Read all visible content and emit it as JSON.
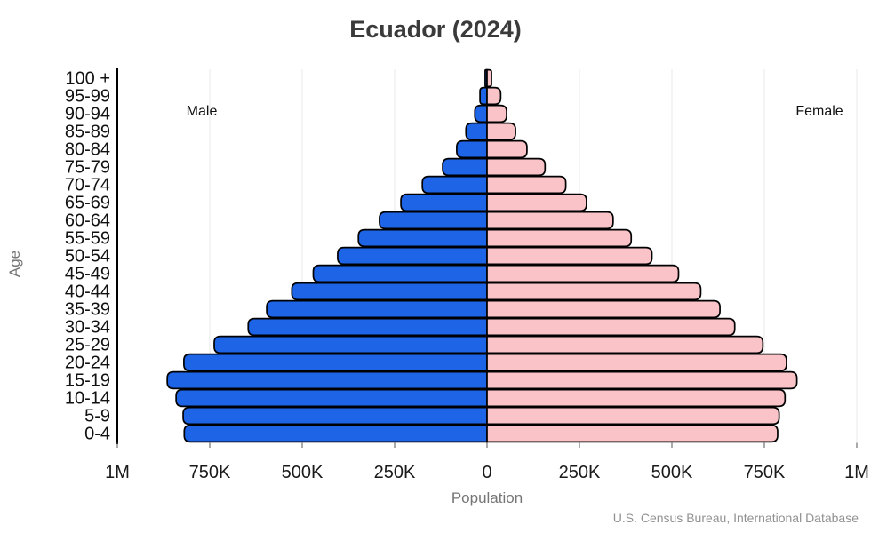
{
  "title": "Ecuador (2024)",
  "labels": {
    "male": "Male",
    "female": "Female",
    "xlabel": "Population",
    "ylabel": "Age",
    "source": "U.S. Census Bureau, International Database"
  },
  "colors": {
    "male": "#1d64e6",
    "female": "#f9c3c8",
    "bar_outline": "#000000",
    "grid": "#e8e8e8",
    "axis": "#000000",
    "tick_mark": "#555555",
    "title": "#3a3a3a",
    "muted_label": "#757575",
    "source_text": "#919191"
  },
  "chart_data": {
    "type": "bar",
    "subtype": "population-pyramid",
    "title": "Ecuador (2024)",
    "xlabel": "Population",
    "ylabel": "Age",
    "grid": true,
    "xlim": [
      -1000000,
      1000000
    ],
    "age_groups": [
      "100 +",
      "95-99",
      "90-94",
      "85-89",
      "80-84",
      "75-79",
      "70-74",
      "65-69",
      "60-64",
      "55-59",
      "50-54",
      "45-49",
      "40-44",
      "35-39",
      "30-34",
      "25-29",
      "20-24",
      "15-19",
      "10-14",
      "5-9",
      "0-4"
    ],
    "series": [
      {
        "name": "Male",
        "side": "left",
        "color": "#1d64e6",
        "values": [
          5000,
          19000,
          33000,
          57000,
          82000,
          120000,
          175000,
          233000,
          291000,
          348000,
          404000,
          470000,
          528000,
          596000,
          646000,
          738000,
          820000,
          865000,
          841000,
          822000,
          819000
        ]
      },
      {
        "name": "Female",
        "side": "right",
        "color": "#f9c3c8",
        "values": [
          12000,
          37000,
          53000,
          77000,
          108000,
          157000,
          213000,
          269000,
          341000,
          390000,
          446000,
          518000,
          578000,
          630000,
          670000,
          746000,
          810000,
          838000,
          806000,
          790000,
          786000
        ]
      }
    ],
    "x_ticks": [
      {
        "label": "1M",
        "value": -1000000
      },
      {
        "label": "750K",
        "value": -750000
      },
      {
        "label": "500K",
        "value": -500000
      },
      {
        "label": "250K",
        "value": -250000
      },
      {
        "label": "0",
        "value": 0
      },
      {
        "label": "250K",
        "value": 250000
      },
      {
        "label": "500K",
        "value": 500000
      },
      {
        "label": "750K",
        "value": 750000
      },
      {
        "label": "1M",
        "value": 1000000
      }
    ]
  }
}
